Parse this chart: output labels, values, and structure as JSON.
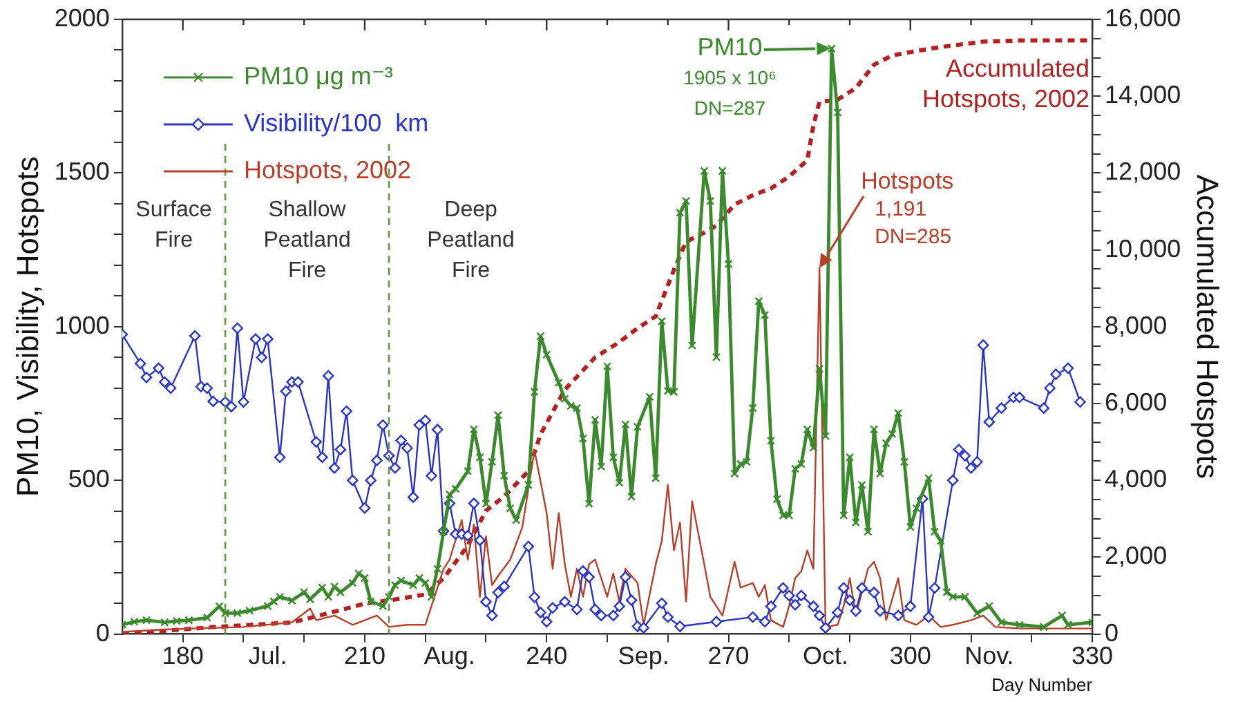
{
  "chart_data": {
    "type": "line",
    "xlabel": "Day Number",
    "ylabel": "PM10, Visibility, Hotspots",
    "y2label": "Accumulated Hotspots",
    "xlim": [
      170,
      330
    ],
    "xticks": [
      180,
      {
        "value": 190,
        "label": null
      },
      {
        "value": 200,
        "label": null
      },
      210,
      {
        "value": 220,
        "label": null
      },
      {
        "value": 230,
        "label": null
      },
      240,
      {
        "value": 250,
        "label": null
      },
      {
        "value": 260,
        "label": null
      },
      270,
      {
        "value": 280,
        "label": null
      },
      {
        "value": 290,
        "label": null
      },
      300,
      {
        "value": 310,
        "label": null
      },
      {
        "value": 320,
        "label": null
      },
      330,
      {
        "value": 194,
        "label": "Jul."
      },
      {
        "value": 224,
        "label": "Aug."
      },
      {
        "value": 256,
        "label": "Sep."
      },
      {
        "value": 286,
        "label": "Oct."
      },
      {
        "value": 313,
        "label": "Nov."
      }
    ],
    "ylim": [
      0,
      2000
    ],
    "yticks": [
      0,
      {
        "value": 100,
        "label": null
      },
      {
        "value": 200,
        "label": null
      },
      {
        "value": 300,
        "label": null
      },
      {
        "value": 400,
        "label": null
      },
      500,
      {
        "value": 600,
        "label": null
      },
      {
        "value": 700,
        "label": null
      },
      {
        "value": 800,
        "label": null
      },
      {
        "value": 900,
        "label": null
      },
      1000,
      {
        "value": 1100,
        "label": null
      },
      {
        "value": 1200,
        "label": null
      },
      {
        "value": 1300,
        "label": null
      },
      {
        "value": 1400,
        "label": null
      },
      1500,
      {
        "value": 1600,
        "label": null
      },
      {
        "value": 1700,
        "label": null
      },
      {
        "value": 1800,
        "label": null
      },
      {
        "value": 1900,
        "label": null
      },
      2000
    ],
    "y2lim": [
      0,
      16000
    ],
    "y2ticks": [
      0,
      {
        "value": 500,
        "label": null
      },
      {
        "value": 1000,
        "label": null
      },
      {
        "value": 1500,
        "label": null
      },
      {
        "value": 2000,
        "label": "2,000"
      },
      {
        "value": 2500,
        "label": null
      },
      {
        "value": 3000,
        "label": null
      },
      {
        "value": 3500,
        "label": null
      },
      {
        "value": 4000,
        "label": "4,000"
      },
      {
        "value": 4500,
        "label": null
      },
      {
        "value": 5000,
        "label": null
      },
      {
        "value": 5500,
        "label": null
      },
      {
        "value": 6000,
        "label": "6,000"
      },
      {
        "value": 6500,
        "label": null
      },
      {
        "value": 7000,
        "label": null
      },
      {
        "value": 7500,
        "label": null
      },
      {
        "value": 8000,
        "label": "8,000"
      },
      {
        "value": 8500,
        "label": null
      },
      {
        "value": 9000,
        "label": null
      },
      {
        "value": 9500,
        "label": null
      },
      {
        "value": 10000,
        "label": "10,000"
      },
      {
        "value": 10500,
        "label": null
      },
      {
        "value": 11000,
        "label": null
      },
      {
        "value": 11500,
        "label": null
      },
      {
        "value": 12000,
        "label": "12,000"
      },
      {
        "value": 12500,
        "label": null
      },
      {
        "value": 13000,
        "label": null
      },
      {
        "value": 13500,
        "label": null
      },
      {
        "value": 14000,
        "label": "14,000"
      },
      {
        "value": 14500,
        "label": null
      },
      {
        "value": 15000,
        "label": null
      },
      {
        "value": 15500,
        "label": null
      },
      {
        "value": 16000,
        "label": "16,000"
      }
    ],
    "legend": "top left",
    "series": [
      {
        "name": "PM10 μg m⁻³",
        "color": "#3b8a2e",
        "marker": "cross",
        "x": [
          170,
          172,
          174,
          177,
          179,
          181,
          184,
          186,
          187,
          189,
          191,
          194,
          195,
          196,
          198,
          200,
          201,
          203,
          204,
          205,
          206,
          208,
          209,
          210,
          211,
          213,
          214,
          215,
          216,
          218,
          219,
          220,
          221,
          222,
          223,
          224,
          225,
          227,
          228,
          229,
          230,
          231,
          232,
          233,
          234,
          235,
          237,
          238,
          239,
          240,
          242,
          243,
          244,
          245,
          246,
          247,
          248,
          249,
          250,
          251,
          252,
          253,
          254,
          255,
          257,
          258,
          259,
          260,
          261,
          262,
          263,
          264,
          266,
          267,
          268,
          269,
          270,
          271,
          272,
          273,
          274,
          275,
          276,
          277,
          278,
          279,
          280,
          281,
          282,
          283,
          284,
          285,
          286,
          287,
          288,
          289,
          290,
          291,
          292,
          293,
          294,
          295,
          296,
          297,
          298,
          299,
          300,
          301,
          303,
          304,
          305,
          306,
          307,
          309,
          311,
          313,
          315,
          318,
          322,
          325,
          326,
          330
        ],
        "values": [
          30,
          40,
          45,
          38,
          42,
          45,
          53,
          90,
          68,
          68,
          76,
          91,
          106,
          121,
          109,
          136,
          113,
          151,
          121,
          154,
          136,
          166,
          197,
          182,
          106,
          91,
          121,
          159,
          174,
          159,
          182,
          166,
          121,
          212,
          333,
          454,
          472,
          530,
          666,
          575,
          424,
          560,
          712,
          515,
          409,
          371,
          485,
          788,
          969,
          909,
          818,
          765,
          742,
          735,
          636,
          424,
          697,
          545,
          871,
          575,
          492,
          682,
          447,
          674,
          772,
          507,
          1018,
          791,
          788,
          1371,
          1409,
          939,
          1507,
          1409,
          901,
          1507,
          1204,
          522,
          553,
          560,
          735,
          1083,
          1038,
          629,
          439,
          386,
          386,
          538,
          553,
          666,
          606,
          863,
          644,
          1905,
          1697,
          386,
          575,
          363,
          485,
          333,
          666,
          522,
          621,
          651,
          719,
          560,
          348,
          409,
          507,
          333,
          303,
          136,
          121,
          121,
          68,
          91,
          38,
          30,
          23,
          60,
          30,
          38
        ]
      },
      {
        "name": "Visibility/100  km",
        "color": "#2a35c8",
        "marker": "diamond",
        "x": [
          170,
          173,
          174,
          176,
          177,
          178,
          182,
          183,
          184,
          185,
          187,
          188,
          189,
          190,
          192,
          193,
          194,
          196,
          197,
          198,
          199,
          202,
          203,
          204,
          205,
          206,
          207,
          208,
          210,
          211,
          212,
          213,
          214,
          215,
          216,
          217,
          218,
          219,
          220,
          221,
          222,
          223,
          224,
          225,
          226,
          227,
          228,
          229,
          230,
          231,
          232,
          233,
          237,
          238,
          239,
          240,
          241,
          243,
          245,
          246,
          247,
          248,
          249,
          251,
          252,
          253,
          254,
          255,
          256,
          259,
          260,
          262,
          268,
          274,
          276,
          277,
          279,
          280,
          281,
          282,
          284,
          285,
          286,
          288,
          289,
          290,
          291,
          292,
          294,
          295,
          298,
          300,
          302,
          303,
          304,
          307,
          308,
          309,
          310,
          311,
          312,
          313,
          315,
          317,
          318,
          322,
          323,
          324,
          326,
          328
        ],
        "values": [
          975,
          880,
          835,
          865,
          820,
          800,
          970,
          805,
          800,
          757,
          755,
          740,
          995,
          755,
          960,
          900,
          960,
          575,
          790,
          820,
          820,
          625,
          575,
          840,
          540,
          600,
          725,
          500,
          410,
          500,
          565,
          680,
          580,
          540,
          630,
          605,
          445,
          680,
          695,
          515,
          665,
          335,
          425,
          325,
          325,
          320,
          425,
          305,
          105,
          60,
          135,
          155,
          285,
          120,
          70,
          40,
          85,
          105,
          80,
          205,
          185,
          80,
          60,
          60,
          90,
          185,
          110,
          25,
          20,
          100,
          55,
          25,
          40,
          55,
          40,
          90,
          150,
          125,
          95,
          125,
          90,
          60,
          20,
          70,
          150,
          110,
          75,
          150,
          135,
          75,
          60,
          90,
          440,
          55,
          150,
          500,
          600,
          580,
          540,
          560,
          940,
          690,
          735,
          770,
          770,
          735,
          800,
          845,
          865,
          755
        ]
      },
      {
        "name": "Hotspots, 2002",
        "color": "#b8402a",
        "marker": "none",
        "x": [
          170,
          177,
          190,
          198,
          201,
          202,
          205,
          208,
          212,
          214,
          217,
          220,
          222,
          223,
          224,
          226,
          227,
          228,
          229,
          230,
          231,
          232,
          234,
          236,
          238,
          240,
          241,
          242,
          243,
          244,
          245,
          246,
          247,
          248,
          250,
          251,
          252,
          253,
          255,
          256,
          258,
          259,
          260,
          261,
          262,
          263,
          264,
          266,
          267,
          269,
          271,
          272,
          274,
          275,
          276,
          277,
          279,
          280,
          281,
          282,
          283,
          284,
          285,
          286,
          288,
          289,
          290,
          291,
          293,
          294,
          295,
          296,
          298,
          299,
          301,
          303,
          305,
          307,
          310,
          312,
          314,
          318,
          326,
          330
        ],
        "values": [
          7,
          15,
          23,
          38,
          83,
          45,
          60,
          30,
          60,
          23,
          30,
          30,
          151,
          212,
          242,
          371,
          242,
          356,
          121,
          318,
          159,
          189,
          242,
          348,
          598,
          394,
          212,
          394,
          227,
          121,
          212,
          121,
          227,
          242,
          121,
          197,
          106,
          212,
          166,
          30,
          227,
          303,
          485,
          272,
          363,
          106,
          432,
          227,
          121,
          60,
          235,
          151,
          166,
          121,
          159,
          45,
          23,
          91,
          182,
          204,
          272,
          212,
          1191,
          23,
          30,
          91,
          182,
          60,
          212,
          235,
          182,
          45,
          182,
          45,
          30,
          60,
          23,
          30,
          45,
          60,
          23,
          18,
          18,
          18
        ]
      },
      {
        "name": "Accumulated Hotspots, 2002",
        "color": "#b22222",
        "marker": "none",
        "line_style": "dashed",
        "axis": "y2",
        "x": [
          170,
          185,
          198,
          204,
          210,
          215,
          220,
          223,
          227,
          230,
          233,
          237,
          239,
          243,
          248,
          252,
          255,
          258,
          261,
          263,
          266,
          268,
          271,
          274,
          277,
          280,
          283,
          284,
          285,
          288,
          291,
          294,
          297,
          301,
          306,
          312,
          318,
          330
        ],
        "values": [
          0,
          180,
          300,
          540,
          790,
          900,
          1030,
          1450,
          2300,
          3210,
          3580,
          4240,
          5200,
          6360,
          7200,
          7600,
          7960,
          8270,
          9480,
          10210,
          10450,
          10630,
          11180,
          11420,
          11600,
          11910,
          12330,
          13240,
          13850,
          13910,
          14210,
          14820,
          15060,
          15180,
          15300,
          15420,
          15450,
          15450
        ]
      }
    ],
    "ref_lines": [
      {
        "axis": "x",
        "value": 187,
        "color": "#5e9a3c",
        "line_style": "dashed"
      },
      {
        "axis": "x",
        "value": 214,
        "color": "#5e9a3c",
        "line_style": "dashed"
      }
    ],
    "annotations": [
      "Surface Fire",
      "Shallow Peatland Fire",
      "Deep Peatland Fire",
      {
        "text": "PM10\n1905 x 10⁶\nDN=287",
        "x": 287,
        "y": 1905
      },
      {
        "text": "Hotspots\n1,191\nDN=285",
        "x": 285,
        "y": 1191
      }
    ]
  }
}
